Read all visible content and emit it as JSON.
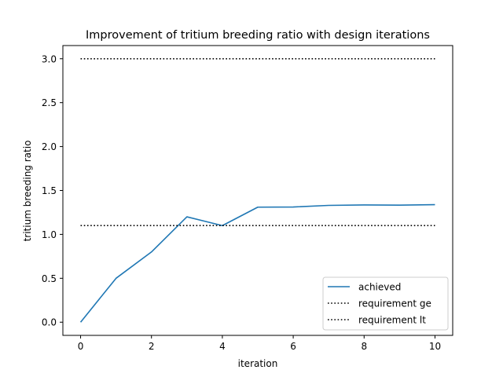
{
  "chart_data": {
    "type": "line",
    "title": "Improvement of tritium breeding ratio with design iterations",
    "xlabel": "iteration",
    "ylabel": "tritium breeding ratio",
    "xlim": [
      -0.5,
      10.5
    ],
    "ylim": [
      -0.15,
      3.15
    ],
    "xticks": [
      0,
      2,
      4,
      6,
      8,
      10
    ],
    "xtick_labels": [
      "0",
      "2",
      "4",
      "6",
      "8",
      "10"
    ],
    "yticks": [
      0.0,
      0.5,
      1.0,
      1.5,
      2.0,
      2.5,
      3.0
    ],
    "ytick_labels": [
      "0.0",
      "0.5",
      "1.0",
      "1.5",
      "2.0",
      "2.5",
      "3.0"
    ],
    "grid": false,
    "legend_position": "lower-right",
    "series": [
      {
        "name": "achieved",
        "style": "solid",
        "color": "#1f77b4",
        "x": [
          0,
          1,
          2,
          3,
          4,
          5,
          6,
          7,
          8,
          9,
          10
        ],
        "y": [
          0.0,
          0.5,
          0.8,
          1.2,
          1.1,
          1.31,
          1.312,
          1.33,
          1.335,
          1.333,
          1.338
        ]
      },
      {
        "name": "requirement ge",
        "style": "dotted",
        "color": "#000000",
        "x": [
          0,
          10
        ],
        "y": [
          1.1,
          1.1
        ]
      },
      {
        "name": "requirement lt",
        "style": "dotted",
        "color": "#000000",
        "x": [
          0,
          10
        ],
        "y": [
          3.0,
          3.0
        ]
      }
    ]
  }
}
